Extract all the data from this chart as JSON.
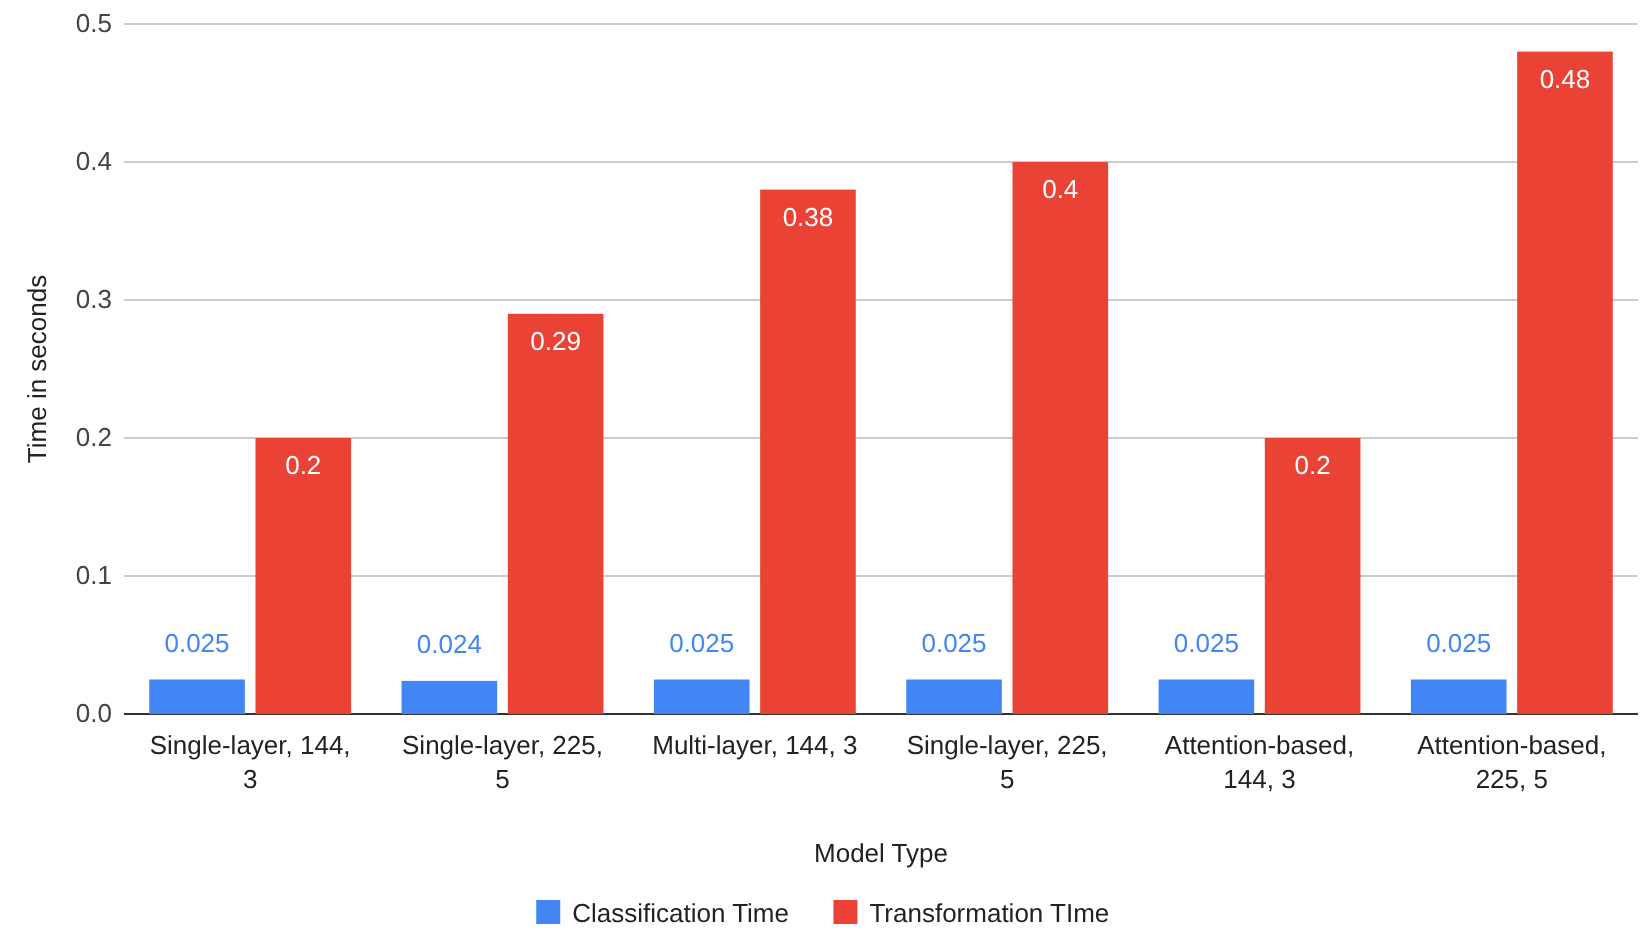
{
  "chart_data": {
    "type": "bar",
    "xlabel": "Model Type",
    "ylabel": "Time in seconds",
    "categories": [
      "Single-layer, 144, 3",
      "Single-layer, 225, 5",
      "Multi-layer, 144, 3",
      "Single-layer, 225, 5",
      "Attention-based, 144, 3",
      "Attention-based, 225, 5"
    ],
    "series": [
      {
        "name": "Classification Time",
        "color": "#4285f4",
        "values": [
          0.025,
          0.024,
          0.025,
          0.025,
          0.025,
          0.025
        ]
      },
      {
        "name": "Transformation TIme",
        "color": "#ea4335",
        "values": [
          0.2,
          0.29,
          0.38,
          0.4,
          0.2,
          0.48
        ]
      }
    ],
    "ylim": [
      0,
      0.5
    ],
    "yticks": [
      {
        "value": 0,
        "label": "0.0"
      },
      0.1,
      0.2,
      0.3,
      0.4,
      0.5
    ],
    "grid": "y",
    "legend": "bottom",
    "data_labels": true
  }
}
